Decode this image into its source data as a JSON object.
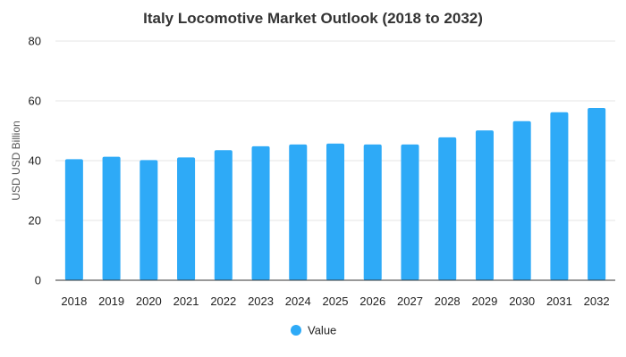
{
  "chart_data": {
    "type": "bar",
    "title": "Italy Locomotive Market Outlook (2018 to 2032)",
    "xlabel": "",
    "ylabel": "USD USD Billion",
    "ylim": [
      0,
      80
    ],
    "yticks": [
      0,
      20,
      40,
      60,
      80
    ],
    "grid": true,
    "legend_position": "bottom",
    "categories": [
      "2018",
      "2019",
      "2020",
      "2021",
      "2022",
      "2023",
      "2024",
      "2025",
      "2026",
      "2027",
      "2028",
      "2029",
      "2030",
      "2031",
      "2032"
    ],
    "series": [
      {
        "name": "Value",
        "color": "#2eaaf7",
        "values": [
          40.5,
          41.3,
          40.2,
          41.1,
          43.5,
          44.8,
          45.4,
          45.7,
          45.4,
          45.4,
          47.8,
          50.1,
          53.2,
          56.2,
          57.6
        ]
      }
    ]
  }
}
